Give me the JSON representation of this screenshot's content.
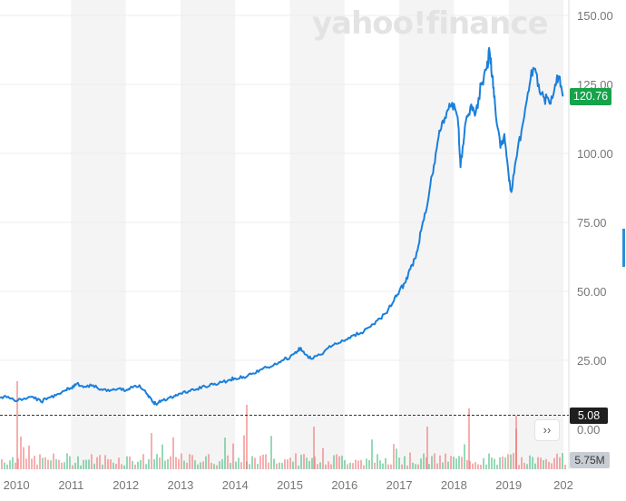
{
  "brand": {
    "watermark": "yahoo!finance"
  },
  "colors": {
    "line": "#1a7fdb",
    "up": "#3fb97a",
    "down": "#ef6e6e",
    "band": "#f4f4f4",
    "grid": "#ececec",
    "axis_text": "#767676",
    "price_badge": "#16a34a",
    "ref_badge": "#1f1f1f",
    "volume_badge": "#c8ccd3"
  },
  "badges": {
    "price": "120.76",
    "reference": "5.08",
    "volume": "5.75M"
  },
  "controls": {
    "scroll_right_icon": "double-chevron-right-icon",
    "scroll_right_glyph": "››"
  },
  "chart_data": {
    "type": "line",
    "title": "",
    "xlabel": "",
    "ylabel": "",
    "x_ticks": [
      "2010",
      "2011",
      "2012",
      "2013",
      "2014",
      "2015",
      "2016",
      "2017",
      "2018",
      "2019",
      "202"
    ],
    "y_ticks": [
      "150.00",
      "125.00",
      "100.00",
      "75.00",
      "50.00",
      "25.00",
      "0.00"
    ],
    "ylim": [
      0,
      150
    ],
    "xlim": [
      2009.7,
      2020.1
    ],
    "reference_line": 5.08,
    "last_price": 120.76,
    "last_volume": "5.75M",
    "grid": true,
    "series": [
      {
        "values": [
          [
            2009.7,
            11.5
          ],
          [
            2009.85,
            11.8
          ],
          [
            2010.0,
            10.2
          ],
          [
            2010.15,
            11.2
          ],
          [
            2010.3,
            11.8
          ],
          [
            2010.45,
            10.0
          ],
          [
            2010.6,
            11.5
          ],
          [
            2010.75,
            12.8
          ],
          [
            2010.9,
            14.2
          ],
          [
            2011.0,
            15.0
          ],
          [
            2011.1,
            16.5
          ],
          [
            2011.25,
            15.5
          ],
          [
            2011.4,
            16.0
          ],
          [
            2011.55,
            14.5
          ],
          [
            2011.7,
            13.8
          ],
          [
            2011.85,
            14.6
          ],
          [
            2012.0,
            14.0
          ],
          [
            2012.1,
            15.5
          ],
          [
            2012.25,
            16.0
          ],
          [
            2012.4,
            12.5
          ],
          [
            2012.5,
            10.0
          ],
          [
            2012.55,
            9.2
          ],
          [
            2012.65,
            10.5
          ],
          [
            2012.8,
            11.5
          ],
          [
            2012.9,
            12.0
          ],
          [
            2013.0,
            13.0
          ],
          [
            2013.15,
            13.8
          ],
          [
            2013.3,
            14.6
          ],
          [
            2013.45,
            15.5
          ],
          [
            2013.6,
            16.2
          ],
          [
            2013.75,
            17.0
          ],
          [
            2013.9,
            18.0
          ],
          [
            2014.0,
            18.5
          ],
          [
            2014.15,
            19.0
          ],
          [
            2014.3,
            20.0
          ],
          [
            2014.45,
            21.5
          ],
          [
            2014.6,
            22.5
          ],
          [
            2014.75,
            23.5
          ],
          [
            2014.9,
            25.5
          ],
          [
            2015.0,
            26.0
          ],
          [
            2015.1,
            28.0
          ],
          [
            2015.2,
            29.5
          ],
          [
            2015.3,
            27.0
          ],
          [
            2015.4,
            25.5
          ],
          [
            2015.55,
            27.0
          ],
          [
            2015.7,
            29.5
          ],
          [
            2015.85,
            31.0
          ],
          [
            2016.0,
            32.0
          ],
          [
            2016.15,
            34.0
          ],
          [
            2016.3,
            35.0
          ],
          [
            2016.45,
            37.0
          ],
          [
            2016.6,
            39.5
          ],
          [
            2016.75,
            42.0
          ],
          [
            2016.9,
            46.5
          ],
          [
            2017.0,
            50.0
          ],
          [
            2017.1,
            53.0
          ],
          [
            2017.2,
            58.0
          ],
          [
            2017.3,
            62.0
          ],
          [
            2017.4,
            72.0
          ],
          [
            2017.5,
            80.0
          ],
          [
            2017.6,
            92.0
          ],
          [
            2017.7,
            104.0
          ],
          [
            2017.8,
            112.0
          ],
          [
            2017.9,
            116.0
          ],
          [
            2018.0,
            118.0
          ],
          [
            2018.08,
            110.0
          ],
          [
            2018.12,
            95.0
          ],
          [
            2018.2,
            110.0
          ],
          [
            2018.3,
            117.0
          ],
          [
            2018.4,
            115.0
          ],
          [
            2018.5,
            125.0
          ],
          [
            2018.6,
            131.0
          ],
          [
            2018.65,
            137.0
          ],
          [
            2018.7,
            128.0
          ],
          [
            2018.75,
            118.0
          ],
          [
            2018.85,
            102.0
          ],
          [
            2018.92,
            107.0
          ],
          [
            2019.0,
            92.0
          ],
          [
            2019.05,
            86.0
          ],
          [
            2019.15,
            99.0
          ],
          [
            2019.25,
            110.0
          ],
          [
            2019.35,
            122.0
          ],
          [
            2019.45,
            131.0
          ],
          [
            2019.55,
            125.0
          ],
          [
            2019.65,
            120.0
          ],
          [
            2019.75,
            118.0
          ],
          [
            2019.85,
            125.0
          ],
          [
            2019.92,
            128.0
          ],
          [
            2020.0,
            120.76
          ]
        ]
      }
    ]
  }
}
